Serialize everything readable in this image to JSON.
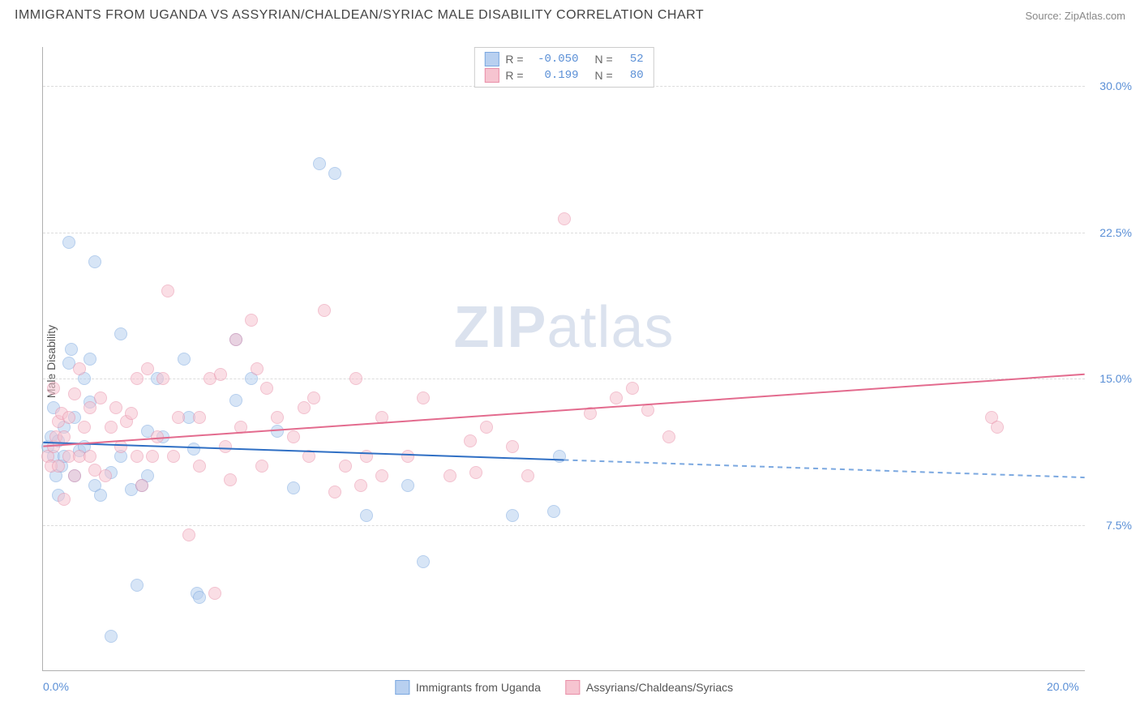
{
  "title": "IMMIGRANTS FROM UGANDA VS ASSYRIAN/CHALDEAN/SYRIAC MALE DISABILITY CORRELATION CHART",
  "source": "Source: ZipAtlas.com",
  "watermark_a": "ZIP",
  "watermark_b": "atlas",
  "y_axis_title": "Male Disability",
  "chart": {
    "type": "scatter",
    "xlim": [
      0,
      20
    ],
    "ylim": [
      0,
      32
    ],
    "xtick_labels": [
      {
        "pos": 0,
        "label": "0.0%"
      },
      {
        "pos": 20,
        "label": "20.0%"
      }
    ],
    "ytick_labels": [
      {
        "pos": 7.5,
        "label": "7.5%"
      },
      {
        "pos": 15.0,
        "label": "15.0%"
      },
      {
        "pos": 22.5,
        "label": "22.5%"
      },
      {
        "pos": 30.0,
        "label": "30.0%"
      }
    ],
    "grid_color": "#dcdcdc",
    "background_color": "#ffffff",
    "series": [
      {
        "name": "Immigrants from Uganda",
        "color_fill": "#b8d0f0",
        "color_stroke": "#7ba8e0",
        "r_label": "R =",
        "r_value": "-0.050",
        "n_label": "N =",
        "n_value": "52",
        "regression": {
          "start": {
            "x": 0,
            "y": 11.7
          },
          "solid_end": {
            "x": 10.0,
            "y": 10.8
          },
          "dash_end": {
            "x": 20.0,
            "y": 9.9
          },
          "solid_color": "#2f6fc4",
          "dash_color": "#7ba8e0",
          "width": 2
        },
        "points": [
          [
            0.1,
            11.5
          ],
          [
            0.15,
            12.0
          ],
          [
            0.2,
            11.0
          ],
          [
            0.2,
            13.5
          ],
          [
            0.25,
            10.0
          ],
          [
            0.3,
            11.8
          ],
          [
            0.3,
            9.0
          ],
          [
            0.35,
            10.5
          ],
          [
            0.4,
            12.5
          ],
          [
            0.4,
            11.0
          ],
          [
            0.5,
            22.0
          ],
          [
            0.5,
            15.8
          ],
          [
            0.55,
            16.5
          ],
          [
            0.6,
            13.0
          ],
          [
            0.6,
            10.0
          ],
          [
            0.7,
            11.3
          ],
          [
            0.8,
            11.5
          ],
          [
            0.8,
            15.0
          ],
          [
            0.9,
            13.8
          ],
          [
            0.9,
            16.0
          ],
          [
            1.0,
            21.0
          ],
          [
            1.0,
            9.5
          ],
          [
            1.1,
            9.0
          ],
          [
            1.3,
            10.2
          ],
          [
            1.3,
            1.8
          ],
          [
            1.5,
            17.3
          ],
          [
            1.5,
            11.0
          ],
          [
            1.7,
            9.3
          ],
          [
            1.8,
            4.4
          ],
          [
            1.9,
            9.5
          ],
          [
            2.0,
            12.3
          ],
          [
            2.0,
            10.0
          ],
          [
            2.2,
            15.0
          ],
          [
            2.3,
            12.0
          ],
          [
            2.7,
            16.0
          ],
          [
            2.8,
            13.0
          ],
          [
            2.9,
            11.4
          ],
          [
            2.95,
            4.0
          ],
          [
            3.0,
            3.8
          ],
          [
            3.7,
            17.0
          ],
          [
            3.7,
            13.9
          ],
          [
            4.0,
            15.0
          ],
          [
            4.5,
            12.3
          ],
          [
            4.8,
            9.4
          ],
          [
            5.3,
            26.0
          ],
          [
            5.6,
            25.5
          ],
          [
            6.2,
            8.0
          ],
          [
            7.0,
            9.5
          ],
          [
            7.3,
            5.6
          ],
          [
            9.0,
            8.0
          ],
          [
            9.8,
            8.2
          ],
          [
            9.9,
            11.0
          ]
        ]
      },
      {
        "name": "Assyrians/Chaldeans/Syriacs",
        "color_fill": "#f6c4d0",
        "color_stroke": "#e98fa8",
        "r_label": "R =",
        "r_value": "0.199",
        "n_label": "N =",
        "n_value": "80",
        "regression": {
          "start": {
            "x": 0,
            "y": 11.5
          },
          "solid_end": {
            "x": 20.0,
            "y": 15.2
          },
          "dash_end": null,
          "solid_color": "#e36b8e",
          "width": 2
        },
        "points": [
          [
            0.1,
            11.0
          ],
          [
            0.15,
            10.5
          ],
          [
            0.2,
            14.5
          ],
          [
            0.2,
            11.5
          ],
          [
            0.25,
            12.0
          ],
          [
            0.3,
            10.5
          ],
          [
            0.3,
            12.8
          ],
          [
            0.35,
            13.2
          ],
          [
            0.4,
            8.8
          ],
          [
            0.4,
            12.0
          ],
          [
            0.5,
            11.0
          ],
          [
            0.5,
            13.0
          ],
          [
            0.6,
            14.2
          ],
          [
            0.6,
            10.0
          ],
          [
            0.7,
            15.5
          ],
          [
            0.7,
            11.0
          ],
          [
            0.8,
            12.5
          ],
          [
            0.9,
            11.0
          ],
          [
            0.9,
            13.5
          ],
          [
            1.0,
            10.3
          ],
          [
            1.1,
            14.0
          ],
          [
            1.2,
            10.0
          ],
          [
            1.3,
            12.5
          ],
          [
            1.4,
            13.5
          ],
          [
            1.5,
            11.5
          ],
          [
            1.6,
            12.8
          ],
          [
            1.7,
            13.2
          ],
          [
            1.8,
            11.0
          ],
          [
            1.8,
            15.0
          ],
          [
            1.9,
            9.5
          ],
          [
            2.0,
            15.5
          ],
          [
            2.1,
            11.0
          ],
          [
            2.2,
            12.0
          ],
          [
            2.3,
            15.0
          ],
          [
            2.4,
            19.5
          ],
          [
            2.5,
            11.0
          ],
          [
            2.6,
            13.0
          ],
          [
            2.8,
            7.0
          ],
          [
            3.0,
            13.0
          ],
          [
            3.0,
            10.5
          ],
          [
            3.2,
            15.0
          ],
          [
            3.3,
            4.0
          ],
          [
            3.4,
            15.2
          ],
          [
            3.5,
            11.5
          ],
          [
            3.6,
            9.8
          ],
          [
            3.7,
            17.0
          ],
          [
            3.8,
            12.5
          ],
          [
            4.0,
            18.0
          ],
          [
            4.1,
            15.5
          ],
          [
            4.2,
            10.5
          ],
          [
            4.3,
            14.5
          ],
          [
            4.5,
            13.0
          ],
          [
            4.8,
            12.0
          ],
          [
            5.0,
            13.5
          ],
          [
            5.1,
            11.0
          ],
          [
            5.2,
            14.0
          ],
          [
            5.4,
            18.5
          ],
          [
            5.6,
            9.2
          ],
          [
            5.8,
            10.5
          ],
          [
            6.0,
            15.0
          ],
          [
            6.1,
            9.5
          ],
          [
            6.2,
            11.0
          ],
          [
            6.5,
            13.0
          ],
          [
            6.5,
            10.0
          ],
          [
            7.0,
            11.0
          ],
          [
            7.3,
            14.0
          ],
          [
            7.8,
            10.0
          ],
          [
            8.2,
            11.8
          ],
          [
            8.3,
            10.2
          ],
          [
            8.5,
            12.5
          ],
          [
            9.0,
            11.5
          ],
          [
            9.3,
            10.0
          ],
          [
            10.0,
            23.2
          ],
          [
            10.5,
            13.2
          ],
          [
            11.0,
            14.0
          ],
          [
            11.3,
            14.5
          ],
          [
            11.6,
            13.4
          ],
          [
            12.0,
            12.0
          ],
          [
            18.2,
            13.0
          ],
          [
            18.3,
            12.5
          ]
        ]
      }
    ]
  }
}
